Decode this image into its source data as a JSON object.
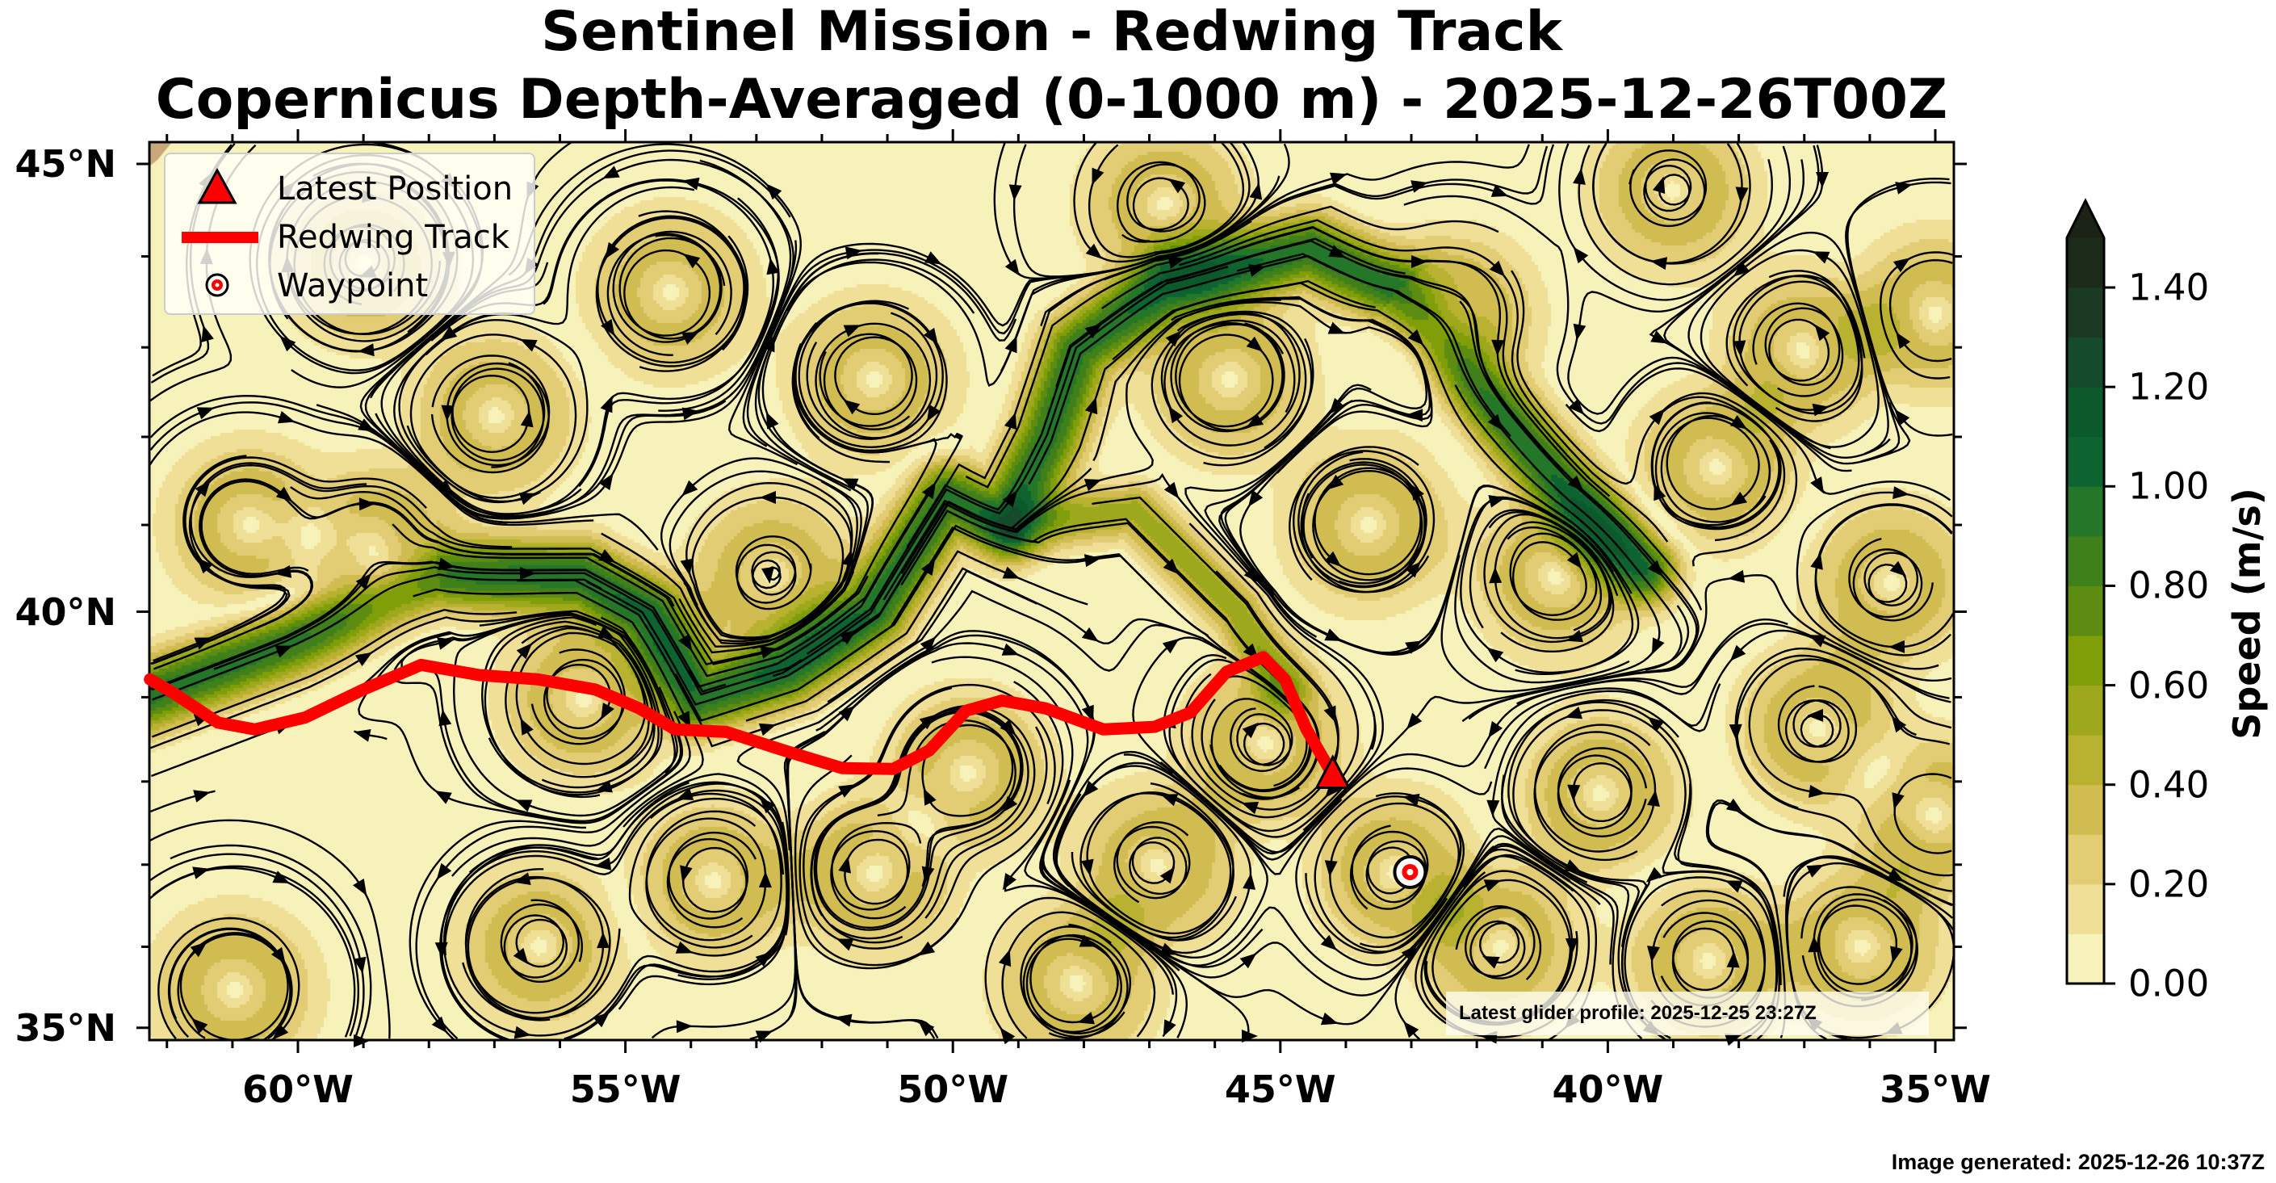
{
  "chart_data": {
    "type": "map-streamplot",
    "title": "Sentinel Mission - Redwing Track",
    "subtitle": "Copernicus Depth-Averaged (0-1000 m) - 2025-12-26T00Z",
    "projection": "Mercator",
    "extent": {
      "lon": [
        -62.27,
        -34.72
      ],
      "lat": [
        34.8,
        45.25
      ]
    },
    "x_ticks": [
      {
        "value": -60,
        "label": "60°W"
      },
      {
        "value": -55,
        "label": "55°W"
      },
      {
        "value": -50,
        "label": "50°W"
      },
      {
        "value": -45,
        "label": "45°W"
      },
      {
        "value": -40,
        "label": "40°W"
      },
      {
        "value": -35,
        "label": "35°W"
      }
    ],
    "y_ticks": [
      {
        "value": 45,
        "label": "45°N"
      },
      {
        "value": 40,
        "label": "40°N"
      },
      {
        "value": 35,
        "label": "35°N"
      }
    ],
    "colorbar": {
      "label": "Speed (m/s)",
      "range": [
        0,
        1.5
      ],
      "extend": "max",
      "ticks": [
        {
          "value": 0,
          "label": "0.00"
        },
        {
          "value": 0.2,
          "label": "0.20"
        },
        {
          "value": 0.4,
          "label": "0.40"
        },
        {
          "value": 0.6,
          "label": "0.60"
        },
        {
          "value": 0.8,
          "label": "0.80"
        },
        {
          "value": 1.0,
          "label": "1.00"
        },
        {
          "value": 1.2,
          "label": "1.20"
        },
        {
          "value": 1.4,
          "label": "1.40"
        }
      ],
      "levels": [
        "#f7f2b9",
        "#efdf97",
        "#e2cd74",
        "#d0bc50",
        "#b9b230",
        "#9ea81c",
        "#7f9e08",
        "#5c8c12",
        "#3f801b",
        "#247628",
        "#0e6430",
        "#0c5a2c",
        "#164a2c",
        "#1b3a24",
        "#1c2a1a"
      ],
      "over_color": "#1b2316"
    },
    "track": {
      "name": "Redwing Track",
      "color": "#ff0000",
      "points": [
        [
          -62.26,
          39.21
        ],
        [
          -61.88,
          39.04
        ],
        [
          -61.22,
          38.7
        ],
        [
          -60.66,
          38.62
        ],
        [
          -59.89,
          38.76
        ],
        [
          -59.0,
          39.09
        ],
        [
          -58.12,
          39.38
        ],
        [
          -57.23,
          39.26
        ],
        [
          -56.34,
          39.21
        ],
        [
          -55.46,
          39.09
        ],
        [
          -54.79,
          38.87
        ],
        [
          -54.24,
          38.62
        ],
        [
          -53.46,
          38.59
        ],
        [
          -52.58,
          38.37
        ],
        [
          -51.69,
          38.16
        ],
        [
          -50.91,
          38.15
        ],
        [
          -50.36,
          38.37
        ],
        [
          -49.8,
          38.84
        ],
        [
          -49.25,
          38.96
        ],
        [
          -48.59,
          38.87
        ],
        [
          -47.7,
          38.62
        ],
        [
          -46.92,
          38.65
        ],
        [
          -46.37,
          38.82
        ],
        [
          -45.82,
          39.3
        ],
        [
          -45.26,
          39.47
        ],
        [
          -44.93,
          39.21
        ],
        [
          -44.6,
          38.62
        ],
        [
          -44.2,
          38.08
        ]
      ]
    },
    "latest_position": {
      "lon": -44.2,
      "lat": 38.08
    },
    "waypoint": {
      "lon": -43.02,
      "lat": 36.91
    },
    "legend": {
      "placement": "top-left",
      "entries": [
        "Latest Position",
        "Redwing Track",
        "Waypoint"
      ]
    }
  },
  "annotations": {
    "glider_profile": "Latest glider profile: 2025-12-25 23:27Z",
    "image_generated": "Image generated: 2025-12-26 10:37Z"
  }
}
